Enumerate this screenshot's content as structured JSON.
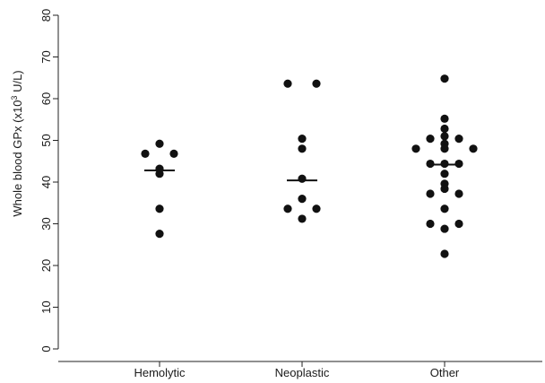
{
  "chart_data": {
    "type": "scatter",
    "subtype": "dot-plot-with-median",
    "title": "",
    "xlabel": "",
    "ylabel_parts": {
      "base": "Whole blood GPx (x10",
      "superscript": "3",
      "unit": " U/L)"
    },
    "ylim": [
      0,
      80
    ],
    "yticks": [
      0,
      10,
      20,
      30,
      40,
      50,
      60,
      70,
      80
    ],
    "categories": [
      "Hemolytic",
      "Neoplastic",
      "Other"
    ],
    "marker_color": "#111111",
    "groups": [
      {
        "category": "Hemolytic",
        "median": 42.8,
        "points": [
          {
            "offset": -1,
            "y": 46.8
          },
          {
            "offset": 0,
            "y": 49.2
          },
          {
            "offset": 1,
            "y": 46.8
          },
          {
            "offset": 0,
            "y": 43.2
          },
          {
            "offset": 0,
            "y": 42.0
          },
          {
            "offset": 0,
            "y": 33.6
          },
          {
            "offset": 0,
            "y": 27.6
          }
        ]
      },
      {
        "category": "Neoplastic",
        "median": 40.4,
        "points": [
          {
            "offset": -1,
            "y": 63.6
          },
          {
            "offset": 1,
            "y": 63.6
          },
          {
            "offset": 0,
            "y": 50.4
          },
          {
            "offset": 0,
            "y": 48.0
          },
          {
            "offset": 0,
            "y": 40.8
          },
          {
            "offset": 0,
            "y": 36.0
          },
          {
            "offset": -1,
            "y": 33.6
          },
          {
            "offset": 1,
            "y": 33.6
          },
          {
            "offset": 0,
            "y": 31.2
          }
        ]
      },
      {
        "category": "Other",
        "median": 44.2,
        "points": [
          {
            "offset": 0,
            "y": 64.8
          },
          {
            "offset": 0,
            "y": 55.2
          },
          {
            "offset": 0,
            "y": 52.8
          },
          {
            "offset": -1,
            "y": 50.4
          },
          {
            "offset": 0,
            "y": 51.0
          },
          {
            "offset": 1,
            "y": 50.4
          },
          {
            "offset": 0,
            "y": 49.2
          },
          {
            "offset": -2,
            "y": 48.0
          },
          {
            "offset": 0,
            "y": 48.0
          },
          {
            "offset": 2,
            "y": 48.0
          },
          {
            "offset": -1,
            "y": 44.4
          },
          {
            "offset": 0,
            "y": 44.4
          },
          {
            "offset": 1,
            "y": 44.4
          },
          {
            "offset": 0,
            "y": 42.0
          },
          {
            "offset": 0,
            "y": 39.6
          },
          {
            "offset": -1,
            "y": 37.2
          },
          {
            "offset": 0,
            "y": 38.4
          },
          {
            "offset": 1,
            "y": 37.2
          },
          {
            "offset": 0,
            "y": 33.6
          },
          {
            "offset": -1,
            "y": 30.0
          },
          {
            "offset": 1,
            "y": 30.0
          },
          {
            "offset": 0,
            "y": 28.8
          },
          {
            "offset": 0,
            "y": 22.8
          }
        ]
      }
    ],
    "grid": false,
    "legend": "none"
  }
}
